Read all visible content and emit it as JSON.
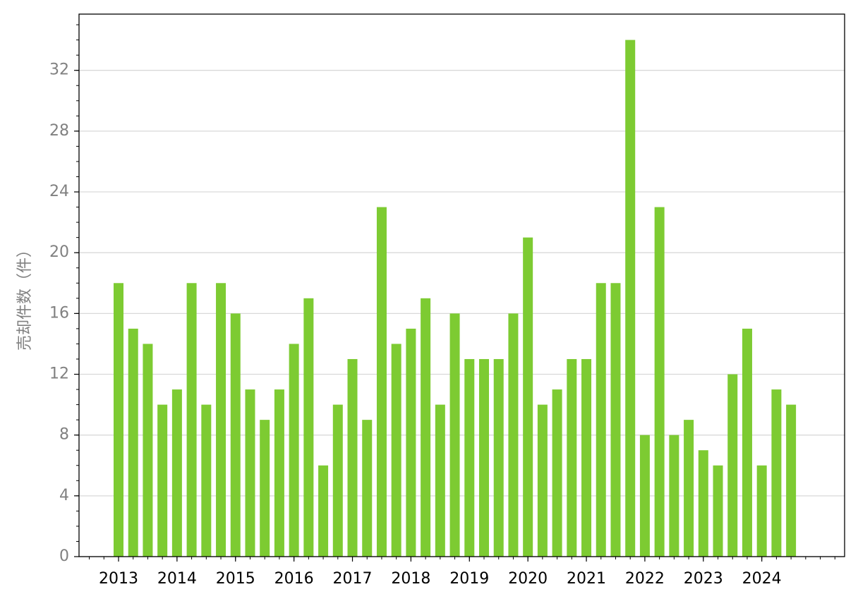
{
  "chart_data": {
    "type": "bar",
    "y_label": "売却件数（件）",
    "categories": [
      "2013",
      null,
      null,
      null,
      "2014",
      null,
      null,
      null,
      "2015",
      null,
      null,
      null,
      "2016",
      null,
      null,
      null,
      "2017",
      null,
      null,
      null,
      "2018",
      null,
      null,
      null,
      "2019",
      null,
      null,
      null,
      "2020",
      null,
      null,
      null,
      "2021",
      null,
      null,
      null,
      "2022",
      null,
      null,
      null,
      "2023",
      null,
      null,
      null,
      "2024",
      null,
      null
    ],
    "values": [
      18,
      15,
      14,
      10,
      11,
      18,
      10,
      18,
      16,
      11,
      9,
      11,
      14,
      17,
      6,
      10,
      13,
      9,
      23,
      14,
      15,
      17,
      10,
      16,
      13,
      13,
      13,
      16,
      21,
      10,
      11,
      13,
      13,
      18,
      18,
      34,
      8,
      23,
      8,
      9,
      7,
      6,
      12,
      15,
      6,
      11,
      10
    ],
    "color": "#7dcb32",
    "ylim": [
      0,
      35.7
    ],
    "yticks": [
      0,
      4,
      8,
      12,
      16,
      20,
      24,
      28,
      32
    ],
    "grid": true
  }
}
